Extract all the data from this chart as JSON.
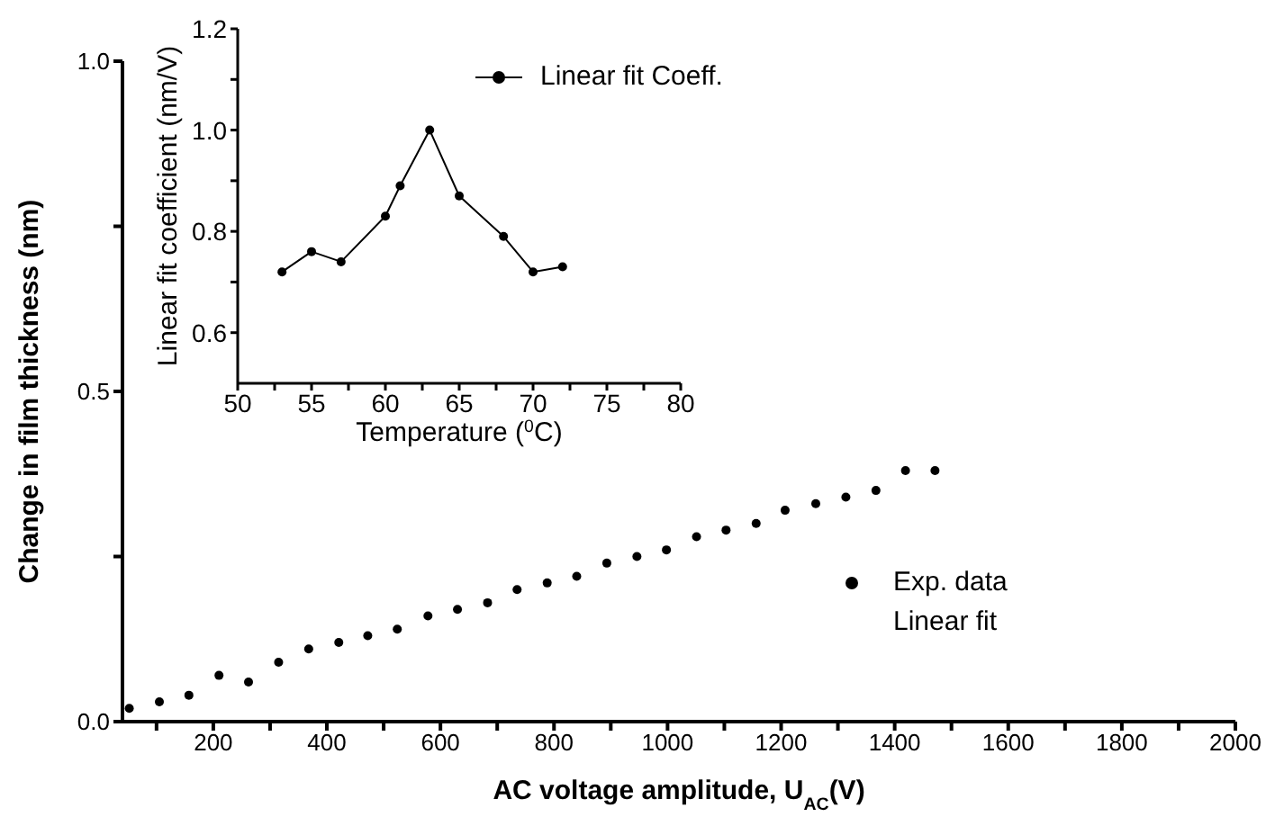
{
  "chart_data": [
    {
      "type": "scatter",
      "xlabel": "AC voltage amplitude, U$_{AC}$(V)",
      "ylabel": "Change in film thickness (nm)",
      "x": [
        52,
        105,
        157,
        210,
        262,
        315,
        368,
        421,
        472,
        524,
        578,
        630,
        683,
        735,
        788,
        840,
        893,
        946,
        998,
        1051,
        1103,
        1156,
        1207,
        1261,
        1314,
        1367,
        1419,
        1471
      ],
      "series": [
        {
          "name": "Exp. data",
          "color": "#000000",
          "values": [
            0.02,
            0.03,
            0.04,
            0.07,
            0.06,
            0.09,
            0.11,
            0.12,
            0.13,
            0.14,
            0.16,
            0.17,
            0.18,
            0.2,
            0.21,
            0.22,
            0.24,
            0.25,
            0.26,
            0.28,
            0.29,
            0.3,
            0.32,
            0.33,
            0.34,
            0.35,
            0.38,
            0.38
          ]
        }
      ],
      "xlim": [
        40,
        2000
      ],
      "xticks": [
        {
          "value": 100,
          "label": null
        },
        200,
        {
          "value": 300,
          "label": null
        },
        400,
        {
          "value": 500,
          "label": null
        },
        600,
        {
          "value": 700,
          "label": null
        },
        800,
        {
          "value": 900,
          "label": null
        },
        1000,
        {
          "value": 1100,
          "label": null
        },
        1200,
        {
          "value": 1300,
          "label": null
        },
        1400,
        {
          "value": 1500,
          "label": null
        },
        1600,
        {
          "value": 1700,
          "label": null
        },
        1800,
        {
          "value": 1900,
          "label": null
        },
        2000
      ],
      "ylim": [
        0,
        1
      ],
      "yticks": [
        {
          "value": 0,
          "label": "0.0"
        },
        {
          "value": 0.25,
          "label": null
        },
        {
          "value": 0.5,
          "label": "0.5"
        },
        {
          "value": 0.75,
          "label": null
        },
        {
          "value": 1,
          "label": "1.0"
        }
      ],
      "annotations": [
        "Linear fit"
      ],
      "legend": "right",
      "marker": "circle"
    },
    {
      "type": "line",
      "xlabel": "Temperature ($^{0}$C)",
      "ylabel": "Linear fit coefficient (nm/V)",
      "x": [
        53,
        55,
        57,
        60,
        61,
        63,
        65,
        68,
        70,
        72
      ],
      "series": [
        {
          "name": "Linear fit Coeff.",
          "color": "#000000",
          "values": [
            0.72,
            0.76,
            0.74,
            0.83,
            0.89,
            1.0,
            0.87,
            0.79,
            0.72,
            0.73
          ]
        }
      ],
      "xlim": [
        50,
        80
      ],
      "xticks": [
        50,
        {
          "value": 52.5,
          "label": null
        },
        55,
        {
          "value": 57.5,
          "label": null
        },
        60,
        {
          "value": 62.5,
          "label": null
        },
        65,
        {
          "value": 67.5,
          "label": null
        },
        70,
        {
          "value": 72.5,
          "label": null
        },
        75,
        {
          "value": 77.5,
          "label": null
        },
        80
      ],
      "ylim": [
        0.5,
        1.2
      ],
      "yticks": [
        {
          "value": 0.6,
          "label": "0.6"
        },
        {
          "value": 0.7,
          "label": null
        },
        {
          "value": 0.8,
          "label": "0.8"
        },
        {
          "value": 0.9,
          "label": null
        },
        {
          "value": 1,
          "label": "1.0"
        },
        {
          "value": 1.1,
          "label": null
        },
        {
          "value": 1.2,
          "label": "1.2"
        }
      ],
      "legend": "top right",
      "marker": "circle",
      "line_style": "solid"
    }
  ]
}
